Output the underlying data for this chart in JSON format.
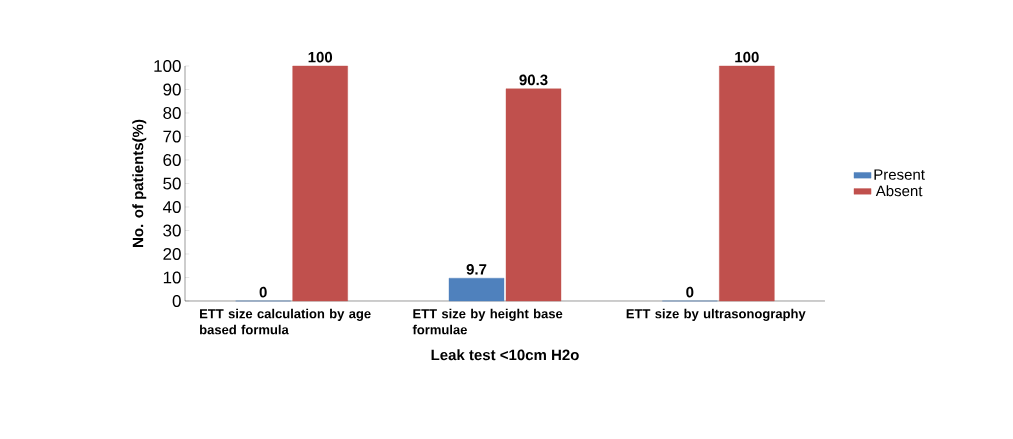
{
  "chart_data": {
    "type": "bar",
    "xlabel": "Leak test  <10cm H2o",
    "ylabel": "No. of patients(%)",
    "categories": [
      "ETT size calculation by age based formula",
      "ETT size by height base formulae",
      "ETT size by ultrasonography"
    ],
    "series": [
      {
        "name": "Present",
        "color": "#4f81bd",
        "values": [
          0,
          9.7,
          0
        ]
      },
      {
        "name": "Absent",
        "color": "#c0504d",
        "values": [
          100,
          90.3,
          100
        ]
      }
    ],
    "ylim": [
      0,
      100
    ],
    "yticks": [
      0,
      10,
      20,
      30,
      40,
      50,
      60,
      70,
      80,
      90,
      100
    ],
    "grid": false,
    "legend": "right",
    "data_labels": true
  }
}
